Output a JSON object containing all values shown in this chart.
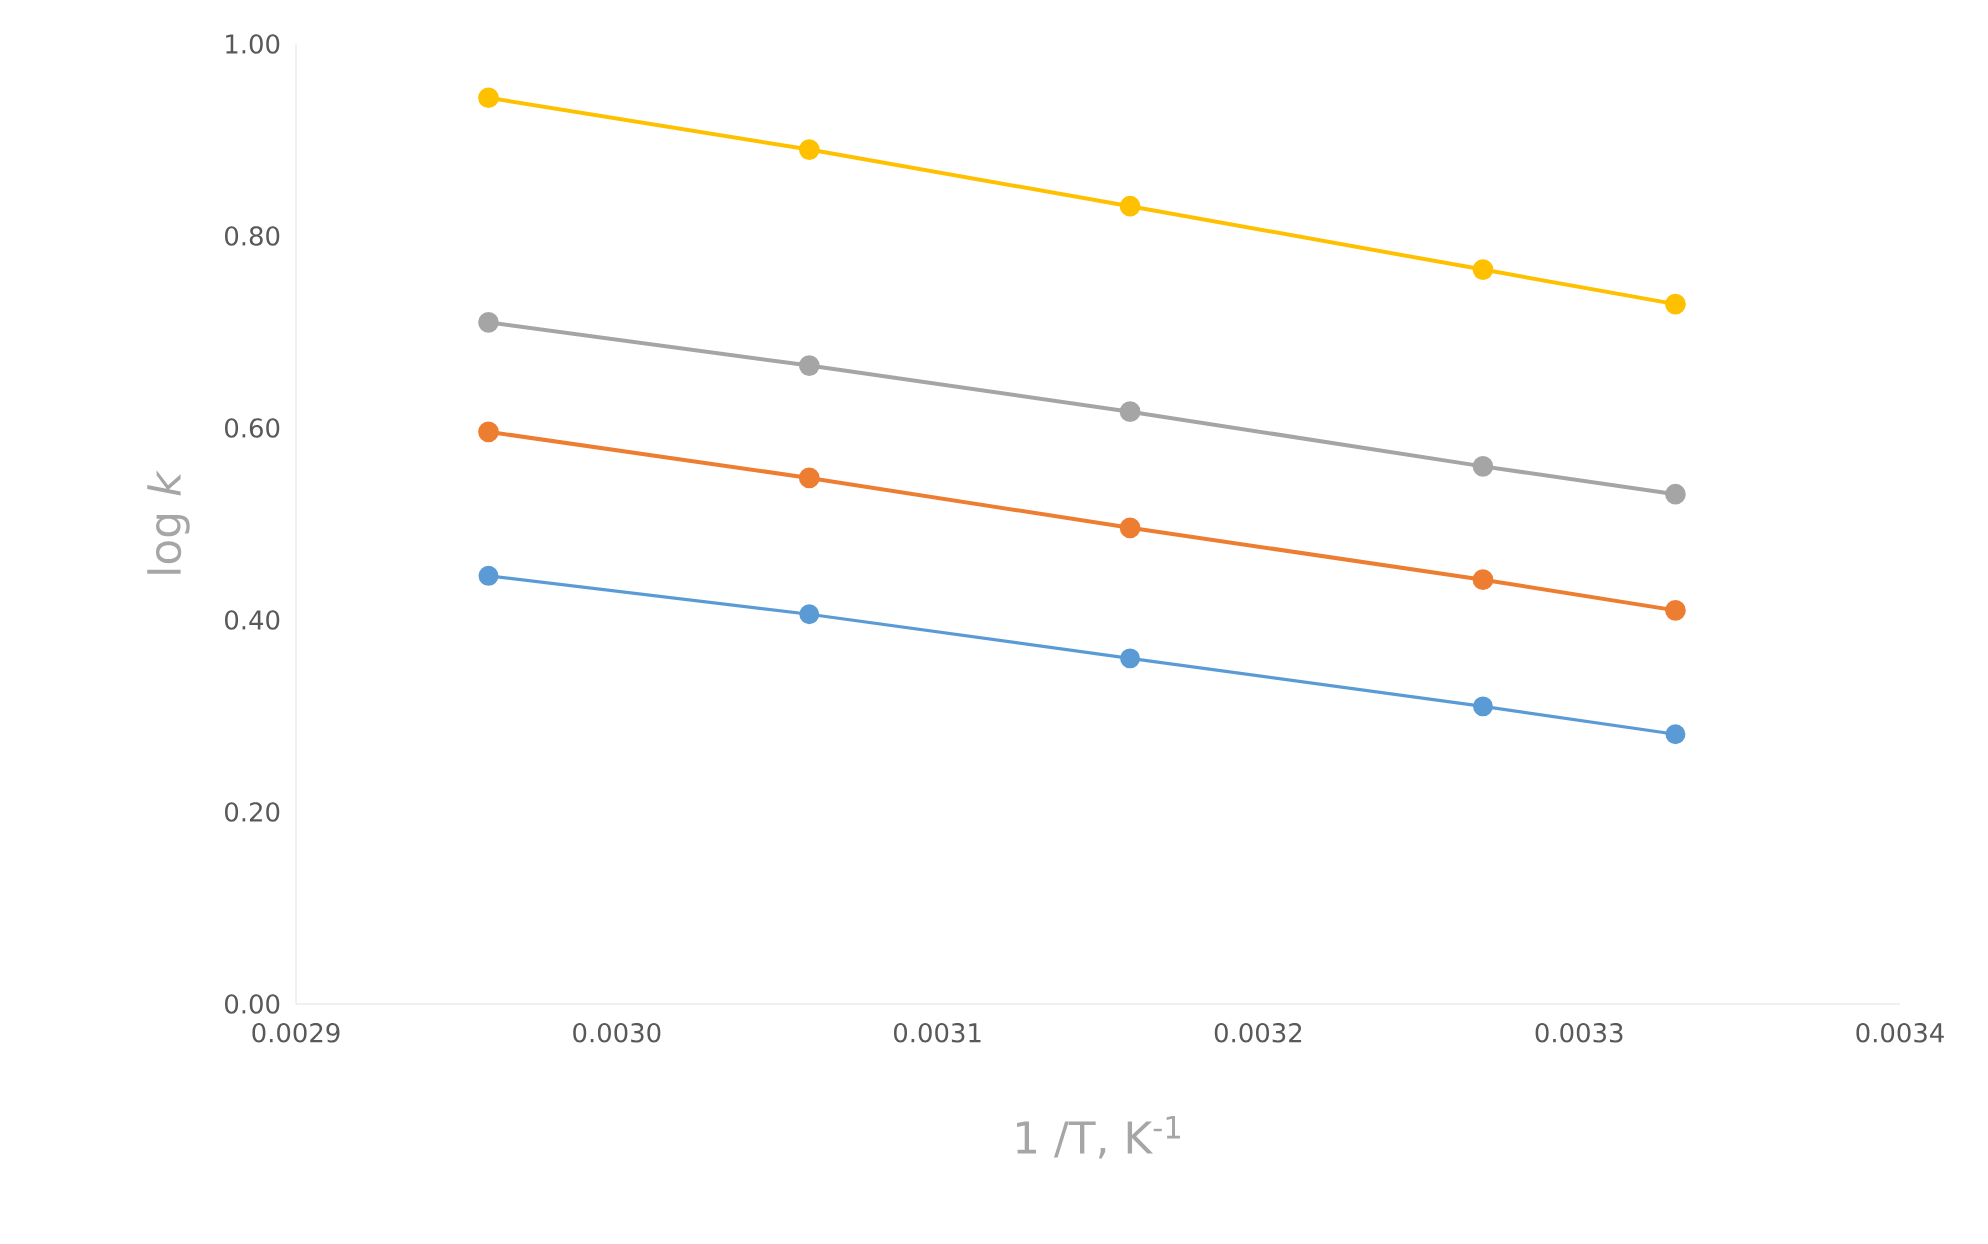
{
  "chart_data": {
    "type": "line",
    "xlabel": "1 /T, K$^{-1}$",
    "ylabel": "log *k*",
    "x": [
      0.00296,
      0.00306,
      0.00316,
      0.00327,
      0.00333
    ],
    "series": [
      {
        "color": "#5b9bd5",
        "values": [
          0.446,
          0.406,
          0.36,
          0.31,
          0.281
        ]
      },
      {
        "color": "#ed7d31",
        "values": [
          0.596,
          0.548,
          0.496,
          0.442,
          0.41
        ]
      },
      {
        "color": "#a5a5a5",
        "values": [
          0.71,
          0.665,
          0.617,
          0.56,
          0.531
        ]
      },
      {
        "color": "#ffc000",
        "values": [
          0.944,
          0.89,
          0.831,
          0.765,
          0.729
        ]
      }
    ],
    "xlim": [
      0.0029,
      0.0034
    ],
    "xticks": [
      {
        "value": 0.0029,
        "label": "0.0029"
      },
      {
        "value": 0.003,
        "label": "0.0030"
      },
      {
        "value": 0.0031,
        "label": "0.0031"
      },
      {
        "value": 0.0032,
        "label": "0.0032"
      },
      {
        "value": 0.0033,
        "label": "0.0033"
      },
      {
        "value": 0.0034,
        "label": "0.0034"
      }
    ],
    "ylim": [
      0,
      1
    ],
    "yticks": [
      {
        "value": 0,
        "label": "0.00"
      },
      {
        "value": 0.2,
        "label": "0.20"
      },
      {
        "value": 0.4,
        "label": "0.40"
      },
      {
        "value": 0.6,
        "label": "0.60"
      },
      {
        "value": 0.8,
        "label": "0.80"
      },
      {
        "value": 1,
        "label": "1.00"
      }
    ],
    "grid": false,
    "marker": "circle",
    "line_style": "solid"
  }
}
